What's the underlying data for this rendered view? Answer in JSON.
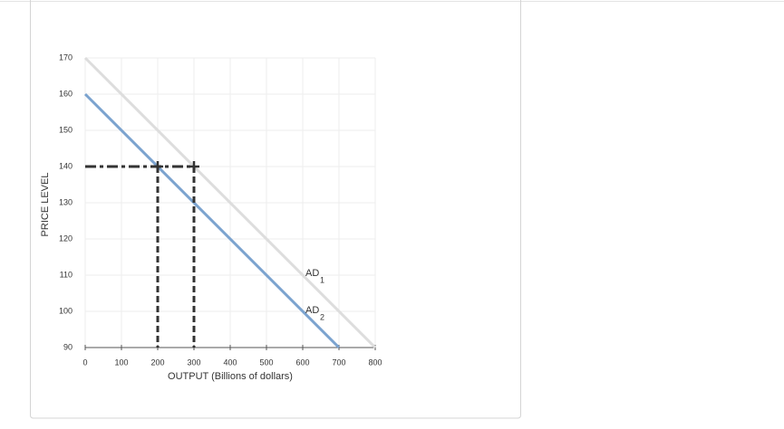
{
  "chart_data": {
    "type": "line",
    "xlabel": "OUTPUT (Billions of dollars)",
    "ylabel": "PRICE LEVEL",
    "xlim": [
      0,
      800
    ],
    "ylim": [
      90,
      170
    ],
    "xticks": [
      0,
      100,
      200,
      300,
      400,
      500,
      600,
      700,
      800
    ],
    "yticks": [
      90,
      100,
      110,
      120,
      130,
      140,
      150,
      160,
      170
    ],
    "grid": true,
    "series": [
      {
        "name": "AD",
        "subscript": "1",
        "color": "#dddddd",
        "x": [
          0,
          800
        ],
        "values": [
          170,
          90
        ]
      },
      {
        "name": "AD",
        "subscript": "2",
        "color": "#7ba3cf",
        "x": [
          0,
          700
        ],
        "values": [
          160,
          90
        ]
      }
    ],
    "guides": [
      {
        "x": [
          0,
          300
        ],
        "values": [
          140,
          140
        ]
      },
      {
        "x": [
          200,
          200
        ],
        "values": [
          140,
          90
        ]
      },
      {
        "x": [
          300,
          300
        ],
        "values": [
          140,
          90
        ]
      }
    ],
    "points": {
      "x": [
        200,
        300
      ],
      "values": [
        140,
        140
      ]
    }
  }
}
